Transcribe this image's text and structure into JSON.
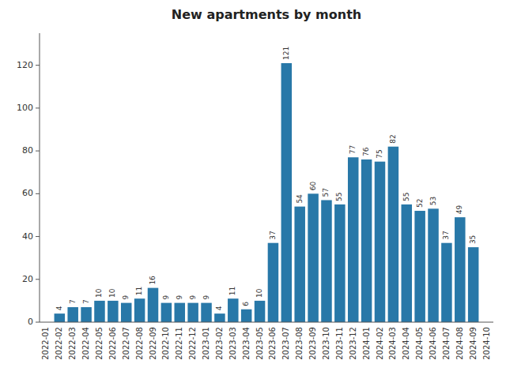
{
  "chart_data": {
    "type": "bar",
    "title": "New apartments by month",
    "categories": [
      "2022-01",
      "2022-02",
      "2022-03",
      "2022-04",
      "2022-05",
      "2022-06",
      "2022-07",
      "2022-08",
      "2022-09",
      "2022-10",
      "2022-11",
      "2022-12",
      "2023-01",
      "2023-02",
      "2023-03",
      "2023-04",
      "2023-05",
      "2023-06",
      "2023-07",
      "2023-08",
      "2023-09",
      "2023-10",
      "2023-11",
      "2023-12",
      "2024-01",
      "2024-02",
      "2024-03",
      "2024-04",
      "2024-05",
      "2024-06",
      "2024-07",
      "2024-08",
      "2024-09",
      "2024-10"
    ],
    "values": [
      0,
      4,
      7,
      7,
      10,
      10,
      9,
      11,
      16,
      9,
      9,
      9,
      9,
      4,
      11,
      6,
      10,
      37,
      121,
      54,
      60,
      57,
      55,
      77,
      76,
      75,
      82,
      55,
      52,
      53,
      37,
      49,
      35,
      0
    ],
    "color": "#2878a8",
    "ylim": [
      0,
      135
    ],
    "yticks": [
      0,
      20,
      40,
      60,
      80,
      100,
      120
    ],
    "grid": false,
    "data_labels": true
  }
}
